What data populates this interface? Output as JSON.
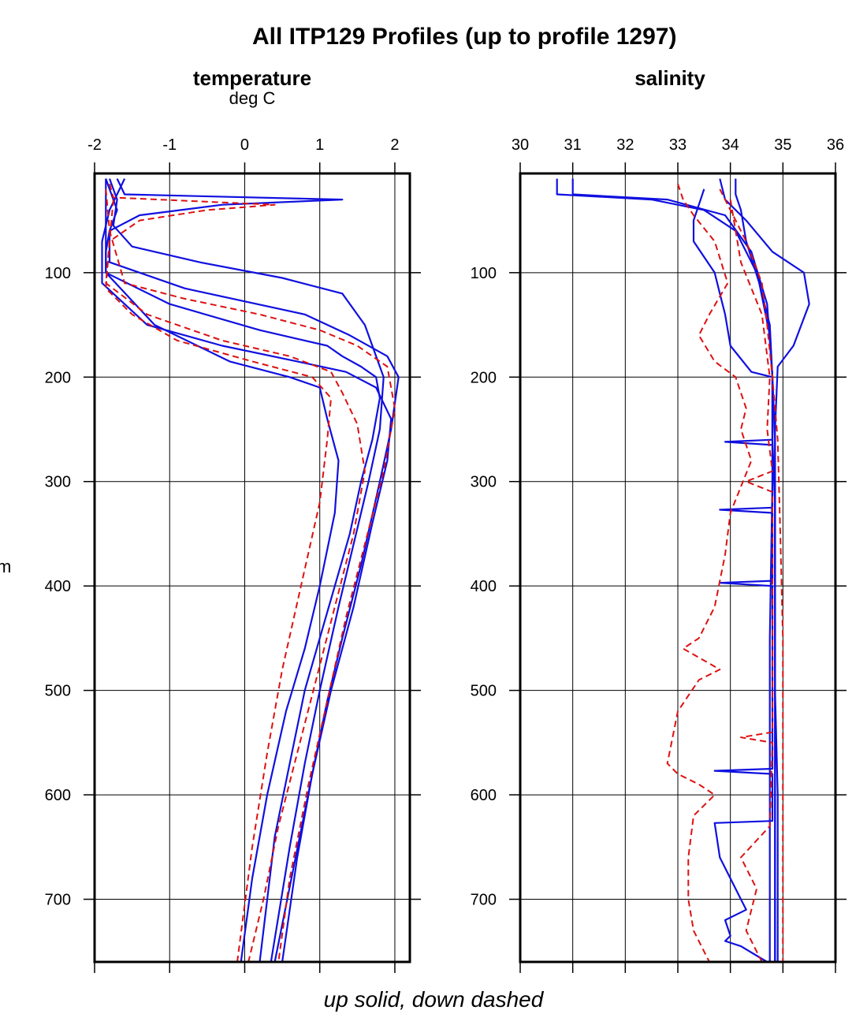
{
  "title": "All ITP129 Profiles (up to profile 1297)",
  "footer": "up solid, down dashed",
  "y_unit_fragment": "m",
  "colors": {
    "up": "#1010e0",
    "down": "#dd1111",
    "axes": "#000000",
    "grid": "#000000"
  },
  "chart_data": [
    {
      "type": "line",
      "title": "temperature",
      "xlabel": "deg C",
      "ylabel": "",
      "x_ticks": [
        -2,
        -1,
        0,
        1,
        2
      ],
      "y_ticks": [
        100,
        200,
        300,
        400,
        500,
        600,
        700
      ],
      "xlim": [
        -2,
        2.2
      ],
      "ylim": [
        760,
        5
      ],
      "grid": true,
      "series": [
        {
          "style": "solid",
          "color": "up",
          "x": [
            -1.85,
            -1.8,
            -1.7,
            -1.8,
            -1.85,
            -1.85,
            -1.0,
            0.2,
            1.1,
            1.3,
            1.55,
            1.75,
            1.8,
            1.7,
            1.55,
            1.4,
            1.2,
            1.0,
            0.8,
            0.6,
            0.4,
            0.2
          ],
          "y": [
            10,
            20,
            40,
            60,
            80,
            100,
            130,
            155,
            170,
            180,
            190,
            200,
            220,
            260,
            300,
            350,
            400,
            450,
            500,
            570,
            640,
            760
          ]
        },
        {
          "style": "solid",
          "color": "up",
          "x": [
            -1.7,
            -1.6,
            1.3,
            -0.3,
            -1.4,
            -1.8,
            -1.8,
            -0.8,
            0.8,
            1.4,
            1.9,
            2.05,
            1.95,
            1.8,
            1.55,
            1.3,
            1.1,
            0.9,
            0.7,
            0.5
          ],
          "y": [
            10,
            25,
            30,
            35,
            45,
            60,
            90,
            115,
            140,
            160,
            180,
            200,
            250,
            300,
            380,
            450,
            510,
            580,
            660,
            760
          ]
        },
        {
          "style": "solid",
          "color": "up",
          "x": [
            -1.85,
            -1.85,
            -1.85,
            -1.2,
            -0.2,
            0.6,
            1.0,
            1.1,
            1.25,
            1.2,
            1.0,
            0.8,
            0.55,
            0.3,
            0.1,
            -0.05
          ],
          "y": [
            10,
            50,
            100,
            150,
            185,
            200,
            210,
            240,
            280,
            330,
            400,
            460,
            520,
            600,
            680,
            760
          ]
        },
        {
          "style": "solid",
          "color": "up",
          "x": [
            -1.6,
            -1.8,
            -1.9,
            -1.9,
            -1.3,
            -0.3,
            0.7,
            1.35,
            1.75,
            1.95,
            1.9,
            1.7,
            1.45,
            1.15,
            0.9,
            0.65,
            0.4
          ],
          "y": [
            10,
            40,
            70,
            110,
            150,
            170,
            185,
            195,
            210,
            240,
            280,
            340,
            420,
            500,
            580,
            670,
            760
          ]
        },
        {
          "style": "solid",
          "color": "up",
          "x": [
            -1.8,
            -1.7,
            -1.75,
            -1.5,
            -0.6,
            0.5,
            1.3,
            1.6,
            1.85,
            1.8,
            1.65,
            1.45,
            1.25,
            1.0,
            0.8,
            0.6,
            0.35
          ],
          "y": [
            10,
            30,
            55,
            75,
            90,
            105,
            120,
            150,
            200,
            250,
            300,
            360,
            420,
            500,
            570,
            650,
            760
          ]
        },
        {
          "style": "dashed",
          "color": "down",
          "x": [
            -1.8,
            -1.75,
            0.4,
            -0.5,
            -1.4,
            -1.8,
            -1.85,
            -1.3,
            -0.3,
            0.6,
            1.15,
            1.3,
            1.5,
            1.6,
            1.45,
            1.2,
            0.95,
            0.7,
            0.45,
            0.25,
            0.05
          ],
          "y": [
            15,
            28,
            35,
            40,
            50,
            70,
            110,
            140,
            165,
            180,
            195,
            215,
            245,
            290,
            350,
            420,
            490,
            560,
            630,
            700,
            760
          ]
        },
        {
          "style": "dashed",
          "color": "down",
          "x": [
            -1.85,
            -1.8,
            -1.6,
            -0.8,
            0.2,
            1.0,
            1.5,
            1.9,
            2.0,
            1.85,
            1.6,
            1.35,
            1.1,
            0.85,
            0.6,
            0.45
          ],
          "y": [
            20,
            60,
            110,
            125,
            140,
            155,
            170,
            190,
            230,
            290,
            360,
            430,
            510,
            590,
            680,
            760
          ]
        },
        {
          "style": "dashed",
          "color": "down",
          "x": [
            -1.75,
            -1.8,
            -1.85,
            -1.5,
            -0.9,
            0.1,
            0.9,
            1.15,
            1.1,
            1.0,
            0.75,
            0.5,
            0.3,
            0.1,
            -0.1
          ],
          "y": [
            30,
            70,
            115,
            140,
            165,
            185,
            200,
            220,
            260,
            320,
            400,
            480,
            560,
            650,
            760
          ]
        }
      ]
    },
    {
      "type": "line",
      "title": "salinity",
      "xlabel": "",
      "ylabel": "",
      "x_ticks": [
        30,
        31,
        32,
        33,
        34,
        35,
        36
      ],
      "y_ticks": [
        100,
        200,
        300,
        400,
        500,
        600,
        700
      ],
      "xlim": [
        30,
        36
      ],
      "ylim": [
        760,
        5
      ],
      "grid": true,
      "series": [
        {
          "style": "solid",
          "color": "up",
          "x": [
            30.7,
            30.7,
            32.5,
            33.5,
            34.1,
            34.5,
            34.75,
            34.8,
            34.8,
            34.85,
            34.85,
            34.85,
            34.9,
            34.9,
            34.9
          ],
          "y": [
            10,
            25,
            30,
            40,
            60,
            100,
            150,
            200,
            260,
            320,
            400,
            500,
            600,
            680,
            760
          ]
        },
        {
          "style": "solid",
          "color": "up",
          "x": [
            34.1,
            34.1,
            34.2,
            34.3,
            34.55,
            34.75,
            34.8,
            34.85,
            34.85,
            34.85,
            34.85,
            34.85
          ],
          "y": [
            10,
            25,
            40,
            70,
            110,
            160,
            200,
            260,
            340,
            450,
            600,
            760
          ]
        },
        {
          "style": "solid",
          "color": "up",
          "x": [
            33.8,
            33.9,
            34.3,
            34.8,
            35.4,
            35.5,
            35.2,
            34.9,
            34.85,
            34.85,
            34.85
          ],
          "y": [
            10,
            30,
            50,
            80,
            100,
            130,
            170,
            190,
            250,
            400,
            760
          ]
        },
        {
          "style": "solid",
          "color": "up",
          "x": [
            33.5,
            33.4,
            33.3,
            33.3,
            33.7,
            33.8,
            33.9,
            34.0,
            34.4,
            34.8,
            34.8,
            33.9,
            34.8,
            34.8,
            33.8,
            34.8,
            34.8,
            33.8,
            34.8,
            34.8,
            33.7,
            34.8,
            34.8,
            33.7,
            33.8,
            34.2,
            34.3,
            33.9,
            34.0,
            33.9,
            34.2,
            34.7
          ],
          "y": [
            20,
            35,
            50,
            70,
            100,
            120,
            140,
            170,
            195,
            200,
            260,
            262,
            265,
            325,
            327,
            330,
            395,
            397,
            400,
            575,
            577,
            580,
            625,
            627,
            660,
            700,
            710,
            720,
            735,
            740,
            745,
            760
          ]
        },
        {
          "style": "solid",
          "color": "up",
          "x": [
            31.0,
            31.0,
            32.8,
            33.9,
            34.4,
            34.7,
            34.8,
            34.8,
            34.75,
            34.75,
            34.75
          ],
          "y": [
            10,
            25,
            30,
            45,
            80,
            130,
            200,
            300,
            450,
            600,
            760
          ]
        },
        {
          "style": "dashed",
          "color": "down",
          "x": [
            33.0,
            33.1,
            33.3,
            33.7,
            33.95,
            33.6,
            33.4,
            33.7,
            34.1,
            34.3,
            34.2,
            34.4,
            34.0,
            33.9,
            33.7,
            33.4,
            33.1,
            33.8,
            33.4,
            33.0,
            32.8,
            33.0,
            33.4,
            33.7,
            33.3,
            33.2,
            33.2,
            33.3,
            33.5,
            33.6
          ],
          "y": [
            15,
            30,
            45,
            70,
            110,
            140,
            160,
            185,
            200,
            230,
            250,
            280,
            330,
            370,
            420,
            450,
            460,
            480,
            490,
            520,
            570,
            580,
            590,
            600,
            620,
            660,
            700,
            730,
            750,
            760
          ]
        },
        {
          "style": "dashed",
          "color": "down",
          "x": [
            33.8,
            34.0,
            34.3,
            34.6,
            34.7,
            34.8,
            34.9,
            34.95,
            35.0,
            35.0,
            35.0
          ],
          "y": [
            20,
            40,
            70,
            110,
            150,
            200,
            260,
            350,
            450,
            600,
            760
          ]
        },
        {
          "style": "dashed",
          "color": "down",
          "x": [
            34.0,
            34.1,
            34.2,
            34.6,
            34.75,
            34.7,
            34.8,
            34.3,
            34.8,
            34.8,
            34.2,
            34.8,
            34.75,
            34.2,
            34.5,
            34.3,
            34.6
          ],
          "y": [
            30,
            60,
            90,
            140,
            200,
            250,
            290,
            300,
            310,
            540,
            545,
            550,
            630,
            660,
            690,
            730,
            760
          ]
        }
      ]
    }
  ]
}
